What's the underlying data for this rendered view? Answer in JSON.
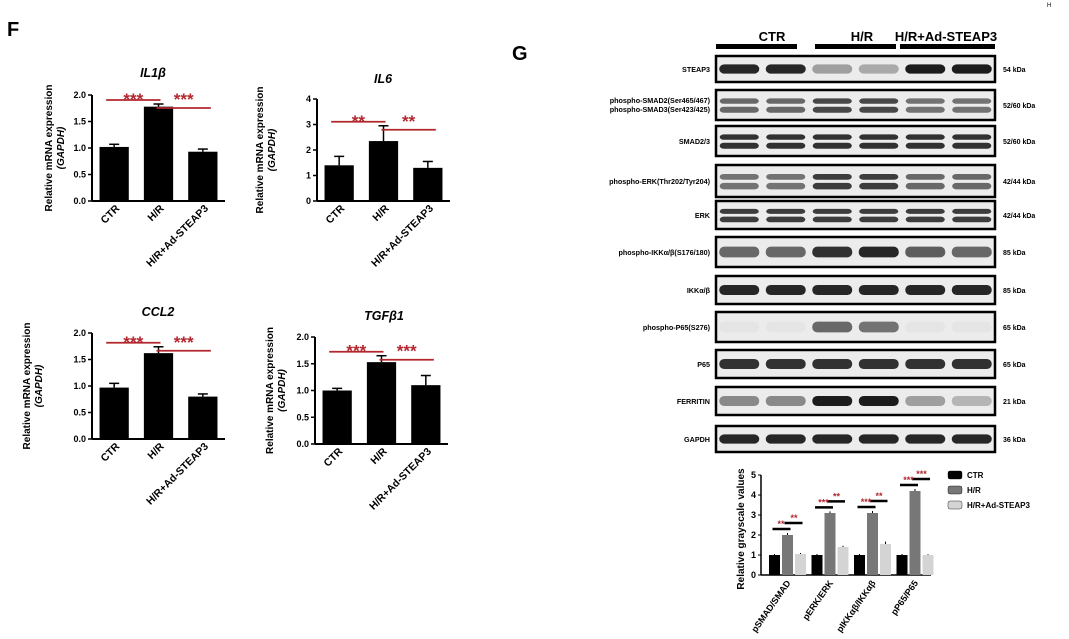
{
  "panels": {
    "f_letter": "F",
    "g_letter": "G",
    "corner_fragment": "H"
  },
  "chart_data": [
    {
      "type": "bar",
      "title": "IL1β",
      "ylabel_line1": "Relative mRNA expression",
      "ylabel_line2": "(GAPDH)",
      "categories": [
        "CTR",
        "H/R",
        "H/R+Ad-STEAP3"
      ],
      "values": [
        1.02,
        1.78,
        0.93
      ],
      "errors": [
        0.05,
        0.05,
        0.05
      ],
      "ylim": [
        0,
        2.0
      ],
      "yticks": [
        "0.0",
        "0.5",
        "1.0",
        "1.5",
        "2.0"
      ],
      "significance": [
        "***",
        "***"
      ]
    },
    {
      "type": "bar",
      "title": "IL6",
      "ylabel_line1": "Relative mRNA expression",
      "ylabel_line2": "(GAPDH)",
      "categories": [
        "CTR",
        "H/R",
        "H/R+Ad-STEAP3"
      ],
      "values": [
        1.4,
        2.35,
        1.3
      ],
      "errors": [
        0.35,
        0.6,
        0.25
      ],
      "ylim": [
        0,
        4
      ],
      "yticks": [
        "0",
        "1",
        "2",
        "3",
        "4"
      ],
      "significance": [
        "**",
        "**"
      ]
    },
    {
      "type": "bar",
      "title": "CCL2",
      "ylabel_line1": "Relative mRNA expression",
      "ylabel_line2": "(GAPDH)",
      "categories": [
        "CTR",
        "H/R",
        "H/R+Ad-STEAP3"
      ],
      "values": [
        0.97,
        1.62,
        0.8
      ],
      "errors": [
        0.08,
        0.12,
        0.05
      ],
      "ylim": [
        0,
        2.0
      ],
      "yticks": [
        "0.0",
        "0.5",
        "1.0",
        "1.5",
        "2.0"
      ],
      "significance": [
        "***",
        "***"
      ]
    },
    {
      "type": "bar",
      "title": "TGFβ1",
      "ylabel_line1": "Relative mRNA expression",
      "ylabel_line2": "(GAPDH)",
      "categories": [
        "CTR",
        "H/R",
        "H/R+Ad-STEAP3"
      ],
      "values": [
        1.0,
        1.53,
        1.1
      ],
      "errors": [
        0.04,
        0.12,
        0.18
      ],
      "ylim": [
        0,
        2.0
      ],
      "yticks": [
        "0.0",
        "0.5",
        "1.0",
        "1.5",
        "2.0"
      ],
      "significance": [
        "***",
        "***"
      ]
    },
    {
      "type": "bar",
      "ylabel": "Relative grayscale values",
      "categories": [
        "pSMAD/SMAD",
        "pERK/ERK",
        "pIKKαβ/IKKαβ",
        "pP65/P65"
      ],
      "ylim": [
        0,
        5
      ],
      "yticks": [
        "0",
        "1",
        "2",
        "3",
        "4",
        "5"
      ],
      "series": [
        {
          "name": "CTR",
          "color": "#000000",
          "values": [
            1.0,
            1.0,
            1.0,
            1.0
          ]
        },
        {
          "name": "H/R",
          "color": "#777777",
          "values": [
            2.0,
            3.1,
            3.1,
            4.2
          ]
        },
        {
          "name": "H/R+Ad-STEAP3",
          "color": "#d4d4d4",
          "values": [
            1.05,
            1.4,
            1.55,
            1.0
          ]
        }
      ],
      "errors": [
        [
          0.05,
          0.05,
          0.05,
          0.05
        ],
        [
          0.1,
          0.08,
          0.1,
          0.1
        ],
        [
          0.05,
          0.06,
          0.12,
          0.04
        ]
      ],
      "significance": [
        [
          "**",
          "**"
        ],
        [
          "***",
          "**"
        ],
        [
          "***",
          "**"
        ],
        [
          "***",
          "***"
        ]
      ],
      "legend": "right"
    }
  ],
  "western_blot": {
    "groups": [
      "CTR",
      "H/R",
      "H/R+Ad-STEAP3"
    ],
    "rows": [
      {
        "label": "STEAP3",
        "kda": "54 kDa"
      },
      {
        "label": "phospho-SMAD2(Ser465/467)",
        "label2": "phospho-SMAD3(Ser423/425)",
        "kda": "52/60 kDa"
      },
      {
        "label": "SMAD2/3",
        "kda": "52/60 kDa"
      },
      {
        "label": "phospho-ERK(Thr202/Tyr204)",
        "kda": "42/44 kDa"
      },
      {
        "label": "ERK",
        "kda": "42/44 kDa"
      },
      {
        "label": "phospho-IKKα/β(S176/180)",
        "kda": "85 kDa"
      },
      {
        "label": "IKKα/β",
        "kda": "85 kDa"
      },
      {
        "label": "phospho-P65(S276)",
        "kda": "65 kDa"
      },
      {
        "label": "P65",
        "kda": "65 kDa"
      },
      {
        "label": "FERRITIN",
        "kda": "21 kDa"
      },
      {
        "label": "GAPDH",
        "kda": "36 kDa"
      }
    ],
    "band_intensity": [
      [
        0.9,
        0.9,
        0.35,
        0.3,
        0.95,
        0.95
      ],
      [
        0.6,
        0.6,
        0.75,
        0.75,
        0.55,
        0.55
      ],
      [
        0.85,
        0.85,
        0.85,
        0.85,
        0.85,
        0.85
      ],
      [
        0.55,
        0.55,
        0.8,
        0.8,
        0.6,
        0.6
      ],
      [
        0.8,
        0.8,
        0.8,
        0.8,
        0.8,
        0.8
      ],
      [
        0.6,
        0.6,
        0.85,
        0.9,
        0.65,
        0.6
      ],
      [
        0.9,
        0.9,
        0.9,
        0.9,
        0.9,
        0.9
      ],
      [
        0.03,
        0.03,
        0.6,
        0.55,
        0.03,
        0.03
      ],
      [
        0.85,
        0.85,
        0.85,
        0.85,
        0.85,
        0.85
      ],
      [
        0.45,
        0.45,
        0.95,
        0.95,
        0.35,
        0.25
      ],
      [
        0.9,
        0.9,
        0.9,
        0.9,
        0.9,
        0.9
      ]
    ]
  }
}
